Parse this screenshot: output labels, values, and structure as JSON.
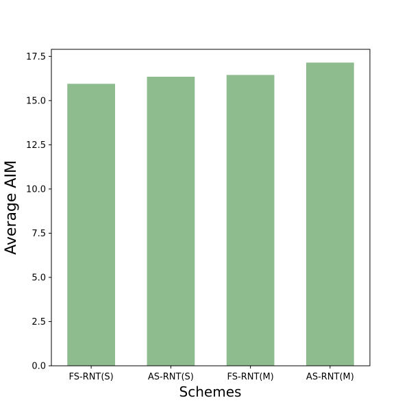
{
  "chart_data": {
    "type": "bar",
    "categories": [
      "FS-RNT(S)",
      "AS-RNT(S)",
      "FS-RNT(M)",
      "AS-RNT(M)"
    ],
    "values": [
      15.95,
      16.35,
      16.45,
      17.15
    ],
    "title": "",
    "xlabel": "Schemes",
    "ylabel": "Average AIM",
    "ylim": [
      0,
      17.9
    ],
    "yticks": [
      "0.0",
      "2.5",
      "5.0",
      "7.5",
      "10.0",
      "12.5",
      "15.0",
      "17.5"
    ],
    "bar_color": "#8fbc8f",
    "grid": false,
    "legend": "none"
  }
}
